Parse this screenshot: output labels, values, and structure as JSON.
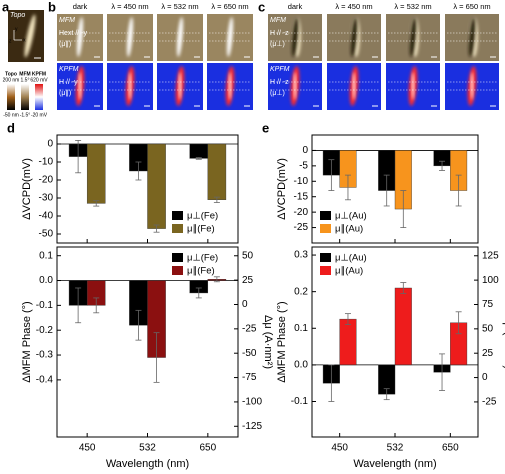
{
  "top_panels": {
    "a": {
      "label": "a",
      "title": "Topo",
      "axes": [
        "y",
        "z",
        "x"
      ],
      "colorbars": {
        "names": [
          "Topo",
          "MFM",
          "KPFM"
        ],
        "max": [
          "200 nm",
          "1.5°",
          "620 mV"
        ],
        "min": [
          "-50 nm",
          "-1.5°",
          "-20 mV"
        ]
      }
    },
    "b": {
      "label": "b",
      "columns": [
        "dark",
        "λ = 450 nm",
        "λ = 532 nm",
        "λ = 650 nm"
      ],
      "mfm": [
        "MFM",
        "Hext // -y",
        "(μ∥)"
      ],
      "kpfm": [
        "KPFM",
        "H // -y",
        "(μ∥)"
      ]
    },
    "c": {
      "label": "c",
      "columns": [
        "dark",
        "λ = 450 nm",
        "λ = 532 nm",
        "λ = 650 nm"
      ],
      "mfm": [
        "MFM",
        "H // -z",
        "(μ⊥)"
      ],
      "kpfm": [
        "KPFM",
        "H // -z",
        "(μ⊥)"
      ]
    }
  },
  "chart_data": [
    {
      "type": "bar",
      "panel_label": "d",
      "ylabel": "ΔVCPD(mV)",
      "categories": [
        null,
        null,
        null
      ],
      "series": [
        {
          "name": "μ⊥(Fe)",
          "color": "#000000",
          "values": [
            -7,
            -15,
            -8
          ],
          "errors": [
            9,
            5,
            0.5
          ]
        },
        {
          "name": "μ∥(Fe)",
          "color": "#7a6520",
          "values": [
            -33,
            -47,
            -31
          ],
          "errors": [
            1.5,
            2,
            1.5
          ]
        }
      ],
      "ylim": [
        -55,
        5
      ],
      "yticks": [
        0,
        -10,
        -20,
        -30,
        -40,
        -50
      ],
      "legend": "lower right"
    },
    {
      "type": "bar",
      "ylabel": "ΔMFM Phase (°)",
      "y2label": "Δμ (A·nm²)",
      "xlabel": "Wavelength (nm)",
      "categories": [
        "450",
        "532",
        "650"
      ],
      "series": [
        {
          "name": "μ⊥(Fe)",
          "color": "#000000",
          "values": [
            -0.1,
            -0.18,
            -0.05
          ],
          "errors": [
            0.07,
            0.06,
            0.02
          ]
        },
        {
          "name": "μ∥(Fe)",
          "color": "#8b1010",
          "values": [
            -0.1,
            -0.31,
            0.005
          ],
          "errors": [
            0.03,
            0.1,
            0.01
          ]
        }
      ],
      "ylim": [
        -0.63,
        0.135
      ],
      "yticks": [
        0.1,
        {
          "value": 0,
          "label": "0.0"
        },
        -0.1,
        -0.2,
        -0.3,
        -0.4
      ],
      "y2lim": [
        -136,
        59
      ],
      "y2ticks": [
        50,
        25,
        0,
        -25,
        -50,
        -75,
        -100,
        -125
      ],
      "legend": "upper right"
    },
    {
      "type": "bar",
      "panel_label": "e",
      "ylabel": "ΔVCPD(mV)",
      "categories": [
        null,
        null,
        null
      ],
      "series": [
        {
          "name": "μ⊥(Au)",
          "color": "#000000",
          "values": [
            -8,
            -13,
            -5
          ],
          "errors": [
            5,
            5,
            1.5
          ]
        },
        {
          "name": "μ∥(Au)",
          "color": "#f7941d",
          "values": [
            -12,
            -19,
            -13
          ],
          "errors": [
            4,
            6,
            5
          ]
        }
      ],
      "ylim": [
        -30,
        5
      ],
      "yticks": [
        0,
        -5,
        -10,
        -15,
        -20,
        -25
      ],
      "legend": "lower left"
    },
    {
      "type": "bar",
      "ylabel": "ΔMFM Phase (°)",
      "y2label": "Δμ (A·nm²)",
      "xlabel": "Wavelength (nm)",
      "categories": [
        "450",
        "532",
        "650"
      ],
      "series": [
        {
          "name": "μ⊥(Au)",
          "color": "#000000",
          "values": [
            -0.05,
            -0.08,
            -0.02
          ],
          "errors": [
            0.05,
            0.015,
            0.05
          ]
        },
        {
          "name": "μ∥(Au)",
          "color": "#ee1c1c",
          "values": [
            0.125,
            0.21,
            0.115
          ],
          "errors": [
            0.015,
            0.015,
            0.03
          ]
        }
      ],
      "ylim": [
        -0.197,
        0.322
      ],
      "yticks": [
        0.3,
        0.2,
        0.1,
        {
          "value": 0,
          "label": "0.0"
        },
        -0.1
      ],
      "y2lim": [
        -61,
        134
      ],
      "y2ticks": [
        125,
        100,
        75,
        50,
        25,
        0,
        -25
      ],
      "legend": "upper left"
    }
  ]
}
